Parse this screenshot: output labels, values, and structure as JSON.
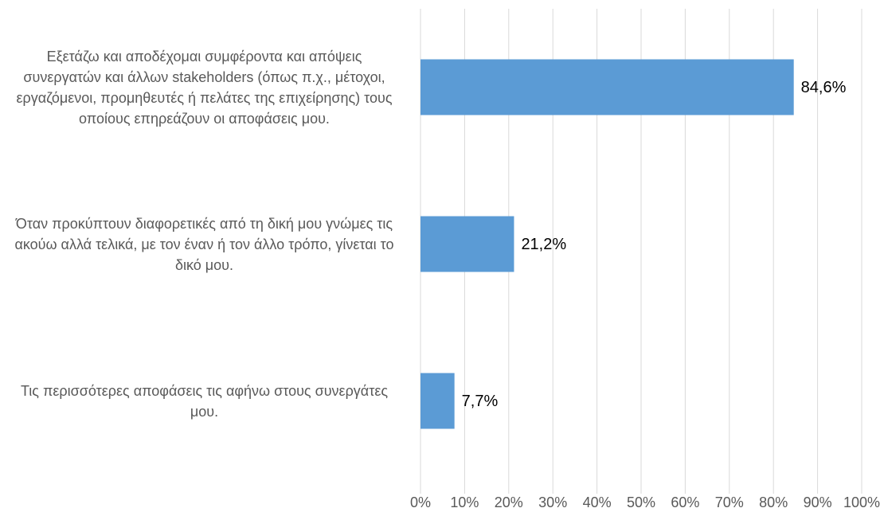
{
  "chart_data": {
    "type": "bar",
    "orientation": "horizontal",
    "categories": [
      "Εξετάζω και αποδέχομαι συμφέροντα και απόψεις συνεργατών και άλλων stakeholders (όπως π.χ., μέτοχοι, εργαζόμενοι, προμηθευτές ή πελάτες της επιχείρησης) τους οποίους επηρεάζουν οι αποφάσεις μου.",
      "Όταν προκύπτουν διαφορετικές από τη δική μου γνώμες τις ακούω αλλά τελικά, με τον έναν ή τον άλλο τρόπο, γίνεται το δικό μου.",
      "Τις περισσότερες αποφάσεις τις αφήνω στους συνεργάτες μου."
    ],
    "values": [
      84.6,
      21.2,
      7.7
    ],
    "value_labels": [
      "84,6%",
      "21,2%",
      "7,7%"
    ],
    "color": "#5b9bd5",
    "xlim": [
      0,
      100
    ],
    "xticks": [
      {
        "value": 0,
        "label": "0%"
      },
      {
        "value": 10,
        "label": "10%"
      },
      {
        "value": 20,
        "label": "20%"
      },
      {
        "value": 30,
        "label": "30%"
      },
      {
        "value": 40,
        "label": "40%"
      },
      {
        "value": 50,
        "label": "50%"
      },
      {
        "value": 60,
        "label": "60%"
      },
      {
        "value": 70,
        "label": "70%"
      },
      {
        "value": 80,
        "label": "80%"
      },
      {
        "value": 90,
        "label": "90%"
      },
      {
        "value": 100,
        "label": "100%"
      }
    ],
    "grid": true
  }
}
